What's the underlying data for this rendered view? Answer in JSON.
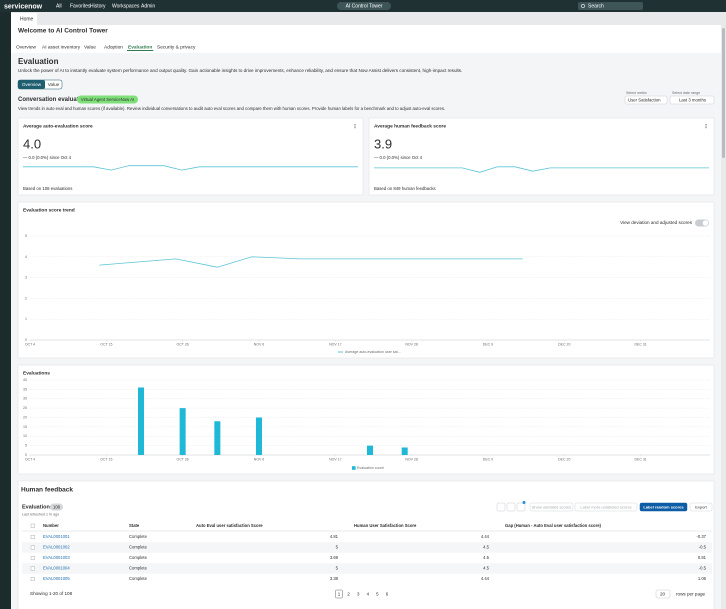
{
  "top_nav": {
    "brand": "servicenow",
    "menu": [
      "All",
      "Favorites",
      "History",
      "Workspaces",
      "Admin"
    ],
    "workspace": "AI Control Tower",
    "search": "Search"
  },
  "tab": "Home",
  "header": {
    "title": "Welcome to AI Control Tower",
    "tabs": [
      "Overview",
      "AI asset inventory",
      "Value",
      "Adoption",
      "Evaluation",
      "Security & privacy"
    ],
    "active_tab": 4
  },
  "section": {
    "title": "Evaluation",
    "description": "Unlock the power of AI to instantly evaluate system performance and output quality. Gain actionable insights to drive improvements, enhance reliability, and ensure that Now Assist delivers consistent, high-impact results.",
    "toggle": [
      "Overview",
      "Value"
    ]
  },
  "conversation": {
    "title": "Conversation evaluation",
    "badge": "Virtual Agent ServiceNow AI",
    "description": "View trends in auto eval and human scores (if available). Review individual conversations to audit auto eval scores and compare them with human scores. Provide human labels for a benchmark and to adjust auto-eval scores.",
    "metric_label": "Select metric",
    "metric": "User Satisfaction",
    "range_label": "Select date range",
    "range": "Last 3 months"
  },
  "cards": [
    {
      "title": "Average auto-evaluation score",
      "score": "4.0",
      "change": "— 0.0 (0.0%) since Oct 4",
      "footnote": "Based on 108 evaluations",
      "color": "#5bc4d6",
      "spark": [
        4.2,
        4.2,
        4.2,
        4.2,
        4.2,
        3.9,
        4.3,
        4.3,
        4.3,
        3.9,
        4.2,
        4.2,
        4.2,
        4.2,
        4.2,
        4.2,
        4.2,
        4.2,
        4.2,
        4.2
      ]
    },
    {
      "title": "Average human feedback score",
      "score": "3.9",
      "change": "— 0.0 (0.0%) since Oct 4",
      "footnote": "Based on 849 human feedbacks",
      "color": "#5bc4d6",
      "spark": [
        4.1,
        4.1,
        4.1,
        4.1,
        4.1,
        4.1,
        3.7,
        4.2,
        4.2,
        3.8,
        4.1,
        4.1,
        4.1,
        4.1,
        4.1,
        4.1,
        4.1,
        4.1,
        4.1,
        4.1
      ]
    }
  ],
  "trend_chart": {
    "type": "line",
    "title": "Evaluation score trend",
    "toggle_label": "View deviation and adjusted scores",
    "series_name": "Average auto-evaluation user sat...",
    "color": "#5bc4d6",
    "x": [
      10,
      21,
      27,
      32,
      39,
      71
    ],
    "values": [
      3.6,
      3.9,
      3.5,
      4.0,
      3.9,
      3.9
    ],
    "xlim": [
      0,
      98
    ],
    "xticks": [
      {
        "value": 0,
        "label": "OCT 4"
      },
      {
        "value": 11,
        "label": "OCT 15"
      },
      {
        "value": 22,
        "label": "OCT 26"
      },
      {
        "value": 33,
        "label": "NOV 6"
      },
      {
        "value": 44,
        "label": "NOV 17"
      },
      {
        "value": 55,
        "label": "NOV 28"
      },
      {
        "value": 66,
        "label": "DEC 9"
      },
      {
        "value": 77,
        "label": "DEC 20"
      },
      {
        "value": 88,
        "label": "DEC 31"
      }
    ],
    "ylim": [
      0,
      5
    ],
    "yticks": [
      0,
      1,
      2,
      3,
      4,
      5
    ],
    "grid": true
  },
  "evaluations_chart": {
    "type": "bar",
    "title": "Evaluations",
    "series_name": "Evaluation count",
    "color": "#1fb8d6",
    "x": [
      16,
      22,
      27,
      33,
      49,
      54
    ],
    "values": [
      36,
      25,
      18,
      20,
      5,
      4
    ],
    "xlim": [
      0,
      98
    ],
    "xticks": [
      {
        "value": 0,
        "label": "OCT 4"
      },
      {
        "value": 11,
        "label": "OCT 15"
      },
      {
        "value": 22,
        "label": "OCT 26"
      },
      {
        "value": 33,
        "label": "NOV 6"
      },
      {
        "value": 44,
        "label": "NOV 17"
      },
      {
        "value": 55,
        "label": "NOV 28"
      },
      {
        "value": 66,
        "label": "DEC 9"
      },
      {
        "value": 77,
        "label": "DEC 20"
      },
      {
        "value": 88,
        "label": "DEC 31"
      }
    ],
    "ylim": [
      0,
      40
    ],
    "yticks": [
      0,
      5,
      10,
      15,
      20,
      25,
      30,
      35,
      40
    ],
    "grid": true
  },
  "human_feedback": {
    "title": "Human feedback",
    "list_title": "Evaluations",
    "count": "108",
    "refreshed": "Last refreshed 1 hr ago",
    "buttons": [
      "Show outdated scores",
      "Label more unlabeled scores",
      "Label random scores",
      "Export"
    ],
    "table": {
      "columns": [
        "Number",
        "State",
        "Auto Eval user satisfaction Score",
        "Human User Satisfaction Score",
        "Gap (Human - Auto Eval user satisfaction score)"
      ],
      "rows": [
        [
          "EVAL0001001",
          "Complete",
          "4.81",
          "4.44",
          "-0.37"
        ],
        [
          "EVAL0001002",
          "Complete",
          "5",
          "4.5",
          "-0.5"
        ],
        [
          "EVAL0001003",
          "Complete",
          "3.69",
          "4.5",
          "0.81"
        ],
        [
          "EVAL0001004",
          "Complete",
          "5",
          "4.5",
          "-0.5"
        ],
        [
          "EVAL0001005",
          "Complete",
          "3.38",
          "4.44",
          "1.06"
        ]
      ]
    },
    "footer": {
      "showing": "Showing 1-20 of 108",
      "pages": [
        1,
        2,
        3,
        4,
        5,
        6
      ],
      "current_page": 0,
      "page_size": "20",
      "page_size_label": "rows per page"
    }
  }
}
